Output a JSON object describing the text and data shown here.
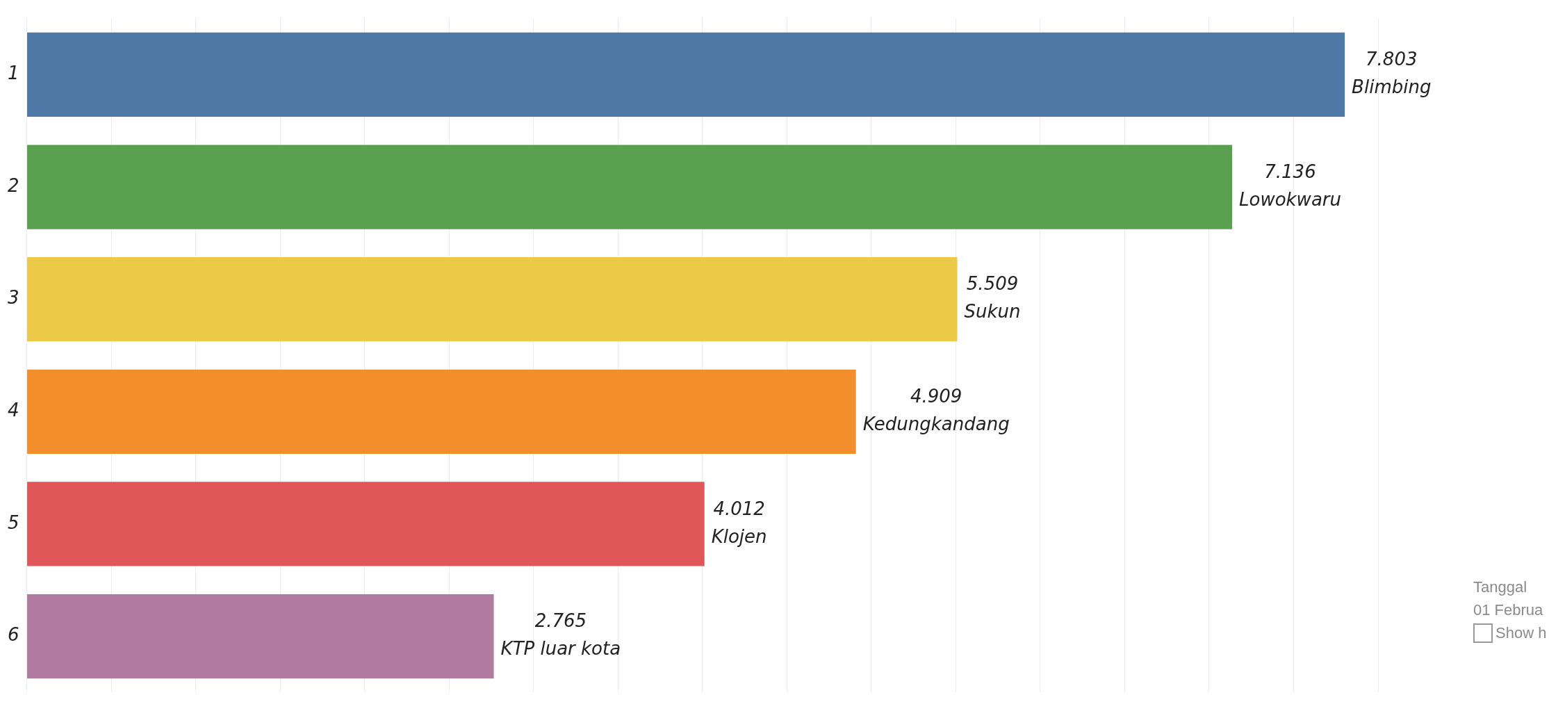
{
  "chart_data": {
    "type": "bar",
    "orientation": "horizontal",
    "categories": [
      "1",
      "2",
      "3",
      "4",
      "5",
      "6"
    ],
    "values": [
      7.803,
      7.136,
      5.509,
      4.909,
      4.012,
      2.765
    ],
    "colors": [
      "#4e79a7",
      "#59a14f",
      "#edc948",
      "#f28e2b",
      "#e15759",
      "#b07aa1"
    ],
    "data_labels": true,
    "annotations": [
      {
        "text": "Blimbing",
        "x": 7.803,
        "y": "1"
      },
      {
        "text": "Lowokwaru",
        "x": 7.136,
        "y": "2"
      },
      {
        "text": "Sukun",
        "x": 5.509,
        "y": "3"
      },
      {
        "text": "Kedungkandang",
        "x": 4.909,
        "y": "4"
      },
      {
        "text": "Klojen",
        "x": 4.012,
        "y": "5"
      },
      {
        "text": "KTP luar kota",
        "x": 2.765,
        "y": "6"
      },
      "Tanggal",
      "01 Februa",
      "Show h"
    ],
    "xlim": [
      0,
      8
    ],
    "xticks": [
      {
        "value": 0,
        "label": null
      },
      {
        "value": 0.5,
        "label": null
      },
      {
        "value": 1,
        "label": null
      },
      {
        "value": 1.5,
        "label": null
      },
      {
        "value": 2,
        "label": null
      },
      {
        "value": 2.5,
        "label": null
      },
      {
        "value": 3,
        "label": null
      },
      {
        "value": 3.5,
        "label": null
      },
      {
        "value": 4,
        "label": null
      },
      {
        "value": 4.5,
        "label": null
      },
      {
        "value": 5,
        "label": null
      },
      {
        "value": 5.5,
        "label": null
      },
      {
        "value": 6,
        "label": null
      },
      {
        "value": 6.5,
        "label": null
      },
      {
        "value": 7,
        "label": null
      },
      {
        "value": 7.5,
        "label": null
      },
      {
        "value": 8,
        "label": null
      }
    ],
    "grid": "x",
    "tick_labels": "y",
    "legend": false
  }
}
